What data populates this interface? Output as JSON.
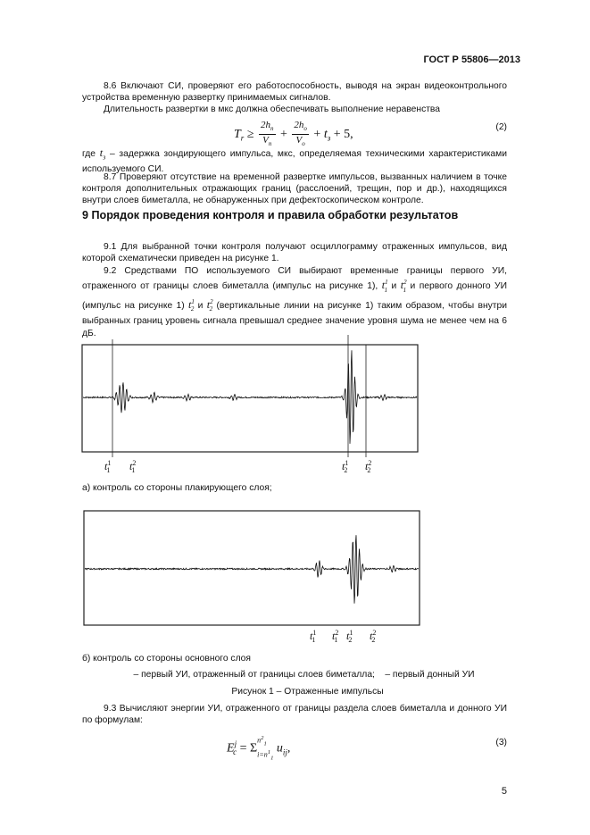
{
  "header": {
    "standard": "ГОСТ Р 55806—2013"
  },
  "section8": {
    "p86": "8.6 Включают СИ, проверяют его работоспособность, выводя на экран видеоконтрольного устройства временную развертку принимаемых сигналов.",
    "p86b": "Длительность развертки в мкс должна обеспечивать выполнение неравенства",
    "eq2": {
      "lhs": "T",
      "lhs_sub": "r",
      "rel": "≥",
      "n1": "2h",
      "n1_sub": "п",
      "d1": "V",
      "d1_sub": "п",
      "n2": "2h",
      "n2_sub": "о",
      "d2": "V",
      "d2_sub": "о",
      "t": "t",
      "t_sub": "з",
      "tail": "+ 5,",
      "number": "(2)"
    },
    "where_prefix": "где",
    "where_sym": "t",
    "where_sub": "з",
    "where_text": "– задержка зондирующего импульса, мкс, определяемая техническими характеристиками используемого СИ.",
    "p87": "8.7 Проверяют отсутствие на временной развертке импульсов, вызванных наличием в точке контроля дополнительных отражающих границ (расслоений, трещин, пор и др.), находящихся внутри слоев биметалла, не обнаруженных при дефектоскопическом контроле."
  },
  "section9": {
    "title": "9 Порядок проведения контроля и правила обработки результатов",
    "p91": "9.1 Для выбранной точки контроля получают осциллограмму отраженных импульсов, вид которой схематически приведен на рисунке 1.",
    "p92_a": "9.2 Средствами ПО используемого СИ выбирают временные границы первого УИ, отраженного от границы слоев биметалла (импульс    на рисунке 1), ",
    "p92_b": " и ",
    "p92_c": " и первого донного УИ (импульс    на рисунке 1) ",
    "p92_d": " и ",
    "p92_e": " (вертикальные линии на рисунке 1) таким образом, чтобы внутри выбранных границ уровень сигнала превышал среднее значение уровня шума не менее чем на 6 дБ.",
    "p93": "9.3 Вычисляют энергии УИ, отраженного от границы раздела слоев биметалла и донного УИ по формулам:",
    "eq3": {
      "lhs": "E",
      "lhs_sub": "c",
      "lhs_sup": "j",
      "sum": "= Σ",
      "from": "i=n",
      "from_sub": "1",
      "from_sup": "1",
      "to": "n",
      "to_sub": "1",
      "to_sup": "2",
      "term": "u",
      "term_sub": "ij",
      "tail": ",",
      "number": "(3)"
    }
  },
  "figure": {
    "labels_a": [
      {
        "t": "t",
        "sup": "1",
        "sub": "1"
      },
      {
        "t": "t",
        "sup": "2",
        "sub": "1"
      },
      {
        "t": "t",
        "sup": "1",
        "sub": "2"
      },
      {
        "t": "t",
        "sup": "2",
        "sub": "2"
      }
    ],
    "caption_a": "а) контроль со стороны плакирующего слоя;",
    "labels_b": [
      {
        "t": "t",
        "sup": "1",
        "sub": "1"
      },
      {
        "t": "t",
        "sup": "2",
        "sub": "1"
      },
      {
        "t": "t",
        "sup": "1",
        "sub": "2"
      },
      {
        "t": "t",
        "sup": "2",
        "sub": "2"
      }
    ],
    "caption_b": "б) контроль со стороны основного слоя",
    "legend": "– первый УИ, отраженный от границы слоев биметалла;    – первый донный УИ",
    "title": "Рисунок 1 – Отраженные импульсы"
  },
  "page_number": "5"
}
